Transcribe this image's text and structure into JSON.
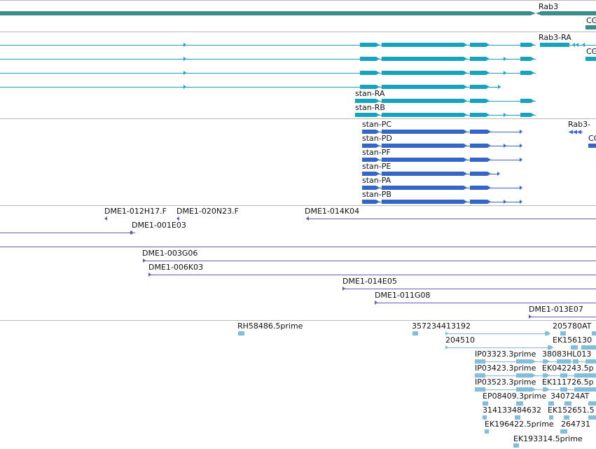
{
  "colors": {
    "gene": "#3a8c8c",
    "transcript_flybase": "#17a2bd",
    "transcript_other": "#3466c9",
    "est_clone": "#6b55b5",
    "est_read": "#82bddb",
    "divider": "#b8b8b8"
  },
  "tracks": {
    "gene": {
      "labels": [
        "Rab3",
        "CG"
      ]
    },
    "flybase_transcripts": {
      "labels": [
        "Rab3-RA",
        "CG",
        "stan-RA",
        "stan-RB"
      ]
    },
    "other_transcripts": {
      "labels": [
        "stan-PC",
        "stan-PD",
        "stan-PF",
        "stan-PE",
        "stan-PA",
        "stan-PB",
        "Rab3-",
        "CG"
      ]
    },
    "est_clones": {
      "labels": [
        "DME1-012H17.F",
        "DME1-020N23.F",
        "DME1-014K04",
        "DME1-001E03",
        "DME1-003G06",
        "DME1-006K03",
        "DME1-014E05",
        "DME1-011G08",
        "DME1-013E07"
      ]
    },
    "est_reads": {
      "labels": [
        "RH58486.5prime",
        "357234413192",
        "205780AT",
        "204510",
        "EK156130",
        "IP03323.3prime",
        "38083HL013",
        "IP03423.3prime",
        "EK042243.5p",
        "IP03523.3prime",
        "EK111726.5p",
        "EP08409.3prime",
        "340724AT",
        "314133484632",
        "EK152651.5",
        "EK196422.5prime",
        "264731",
        "EK193314.5prime"
      ]
    }
  }
}
